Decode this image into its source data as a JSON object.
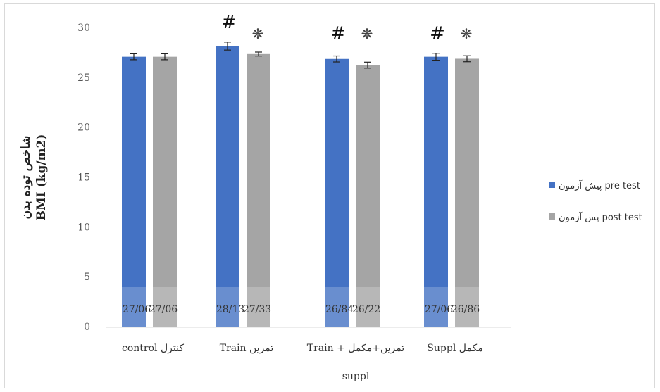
{
  "chart_data": {
    "type": "bar",
    "ylabel_line1": "شاخص توده بدن",
    "ylabel_line2": "BMI (kg/m2)",
    "ylim": [
      0,
      30
    ],
    "yticks": [
      0,
      5,
      10,
      15,
      20,
      25,
      30
    ],
    "categories": [
      "control کنترل",
      "Train تمرین",
      "Train + تمرین+مکمل",
      "Suppl مکمل"
    ],
    "category_second_lines": [
      "",
      "",
      "suppl",
      ""
    ],
    "series": [
      {
        "name": "پیش آزمون pre test",
        "color": "#4472c4",
        "values": [
          27.06,
          28.13,
          26.84,
          27.06
        ],
        "labels": [
          "27/06",
          "28/13",
          "26/84",
          "27/06"
        ],
        "errors": [
          0.3,
          0.4,
          0.3,
          0.35
        ]
      },
      {
        "name": "پس آزمون post test",
        "color": "#a5a5a5",
        "values": [
          27.06,
          27.33,
          26.22,
          26.86
        ],
        "labels": [
          "27/06",
          "27/33",
          "26/22",
          "26/86"
        ],
        "errors": [
          0.3,
          0.2,
          0.3,
          0.3
        ]
      }
    ],
    "annotations": [
      {
        "category": 1,
        "hash": "#",
        "star": "❋"
      },
      {
        "category": 2,
        "hash": "#",
        "star": "❋"
      },
      {
        "category": 3,
        "hash": "#",
        "star": "❋"
      }
    ],
    "legend_position": "right",
    "grid": false
  }
}
